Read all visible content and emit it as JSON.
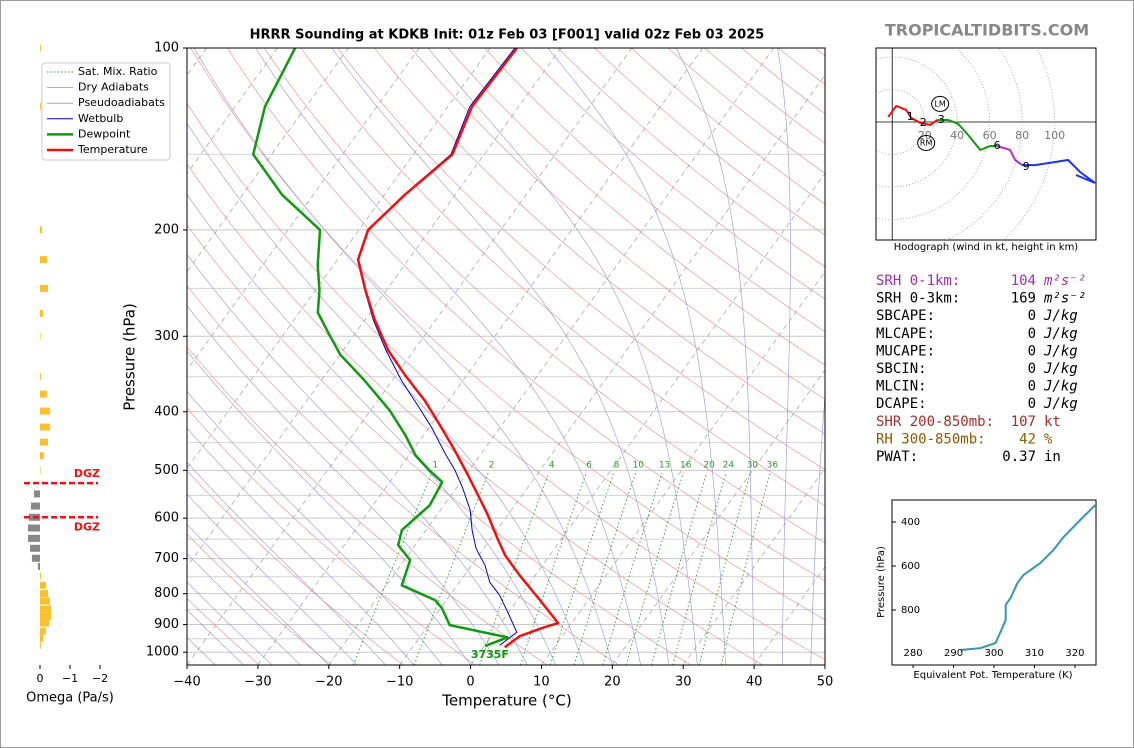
{
  "brand": "TROPICALTIDBITS.COM",
  "indices": [
    {
      "label": "SRH 0-1km:",
      "value": 104,
      "unit": "m²s⁻²",
      "color": "#9b30b0"
    },
    {
      "label": "SRH 0-3km:",
      "value": 169,
      "unit": "m²s⁻²",
      "color": "#000000"
    },
    {
      "label": "SBCAPE:",
      "value": 0,
      "unit": "J/kg",
      "color": "#000000"
    },
    {
      "label": "MLCAPE:",
      "value": 0,
      "unit": "J/kg",
      "color": "#000000"
    },
    {
      "label": "MUCAPE:",
      "value": 0,
      "unit": "J/kg",
      "color": "#000000"
    },
    {
      "label": "SBCIN:",
      "value": 0,
      "unit": "J/kg",
      "color": "#000000"
    },
    {
      "label": "MLCIN:",
      "value": 0,
      "unit": "J/kg",
      "color": "#000000"
    },
    {
      "label": "DCAPE:",
      "value": 0,
      "unit": "J/kg",
      "color": "#000000"
    },
    {
      "label": "SHR 200-850mb:",
      "value": 107,
      "unit": "kt",
      "color": "#a0302a"
    },
    {
      "label": "RH 300-850mb:",
      "value": 42,
      "unit": "%",
      "color": "#8b5a00"
    },
    {
      "label": "PWAT:",
      "value": 0.37,
      "unit": "in",
      "color": "#000000"
    }
  ],
  "chart_data": [
    {
      "type": "skewt",
      "title": "HRRR Sounding at KDKB Init: 01z Feb 03 [F001] valid 02z Feb 03 2025",
      "xlabel": "Temperature (°C)",
      "ylabel": "Pressure (hPa)",
      "xlim": [
        -40,
        50
      ],
      "xticks": [
        {
          "value": -40,
          "label": "−40"
        },
        {
          "value": -30,
          "label": "−30"
        },
        {
          "value": -20,
          "label": "−20"
        },
        {
          "value": -10,
          "label": "−10"
        },
        0,
        10,
        20,
        30,
        40,
        50
      ],
      "ylim": [
        1050,
        100
      ],
      "log_y": true,
      "yticks": [
        100,
        200,
        300,
        400,
        500,
        600,
        700,
        800,
        900,
        1000
      ],
      "minor_yticks": [
        150,
        250,
        350,
        450,
        550,
        650,
        750,
        850,
        950
      ],
      "reference_lines": [
        {
          "name": "Sat. Mix. Ratio",
          "color": "#2a9d2a",
          "style": "dotted"
        },
        {
          "name": "Dry Adiabats",
          "color": "#e58a8a",
          "style": "solid"
        },
        {
          "name": "Pseudoadiabats",
          "color": "#9595dd",
          "style": "solid"
        }
      ],
      "mixing_ratios": [
        1,
        2,
        4,
        6,
        8,
        10,
        13,
        16,
        20,
        24,
        30,
        36
      ],
      "series": [
        {
          "name": "Wetbulb",
          "color": "#0000cc",
          "line_width": 1,
          "pressure": [
            974,
            927,
            859,
            805,
            766,
            718,
            673,
            628,
            582,
            535,
            500,
            467,
            426,
            390,
            355,
            316,
            282,
            252,
            224,
            200,
            175,
            150,
            125,
            100
          ],
          "values": [
            2.1,
            3.2,
            -0.1,
            -3.0,
            -5.7,
            -8.1,
            -11.1,
            -13.5,
            -15.8,
            -19.1,
            -22.0,
            -25.3,
            -29.5,
            -33.9,
            -38.7,
            -44.0,
            -48.8,
            -53.0,
            -57.2,
            -58.8,
            -57.2,
            -54.7,
            -56.9,
            -56.5
          ]
        },
        {
          "name": "Dewpoint",
          "color": "#119911",
          "line_width": 2.5,
          "pressure": [
            977,
            945,
            902,
            846,
            820,
            775,
            704,
            665,
            628,
            571,
            523,
            500,
            472,
            437,
            398,
            355,
            322,
            299,
            274,
            252,
            229,
            200,
            175,
            150,
            125,
            100
          ],
          "values": [
            0.1,
            2.4,
            -7.0,
            -9.8,
            -11.6,
            -17.8,
            -19.2,
            -22.4,
            -23.4,
            -22.0,
            -22.6,
            -25.6,
            -29.1,
            -32.6,
            -37.3,
            -43.9,
            -49.9,
            -53.4,
            -57.4,
            -59.4,
            -62.2,
            -65.5,
            -74.4,
            -82.6,
            -85.8,
            -87.5
          ]
        },
        {
          "name": "Temperature",
          "color": "#ee1111",
          "line_width": 2.5,
          "pressure": [
            981,
            941,
            909,
            895,
            820,
            746,
            691,
            648,
            593,
            550,
            509,
            463,
            421,
            383,
            348,
            316,
            282,
            252,
            224,
            200,
            175,
            150,
            125,
            100
          ],
          "values": [
            3.0,
            4.0,
            6.6,
            8.1,
            3.2,
            -2.2,
            -6.3,
            -9.1,
            -12.8,
            -16.2,
            -19.7,
            -24.1,
            -28.7,
            -33.4,
            -38.7,
            -43.7,
            -48.6,
            -52.9,
            -57.1,
            -58.7,
            -57.1,
            -54.5,
            -56.6,
            -56.2
          ]
        }
      ],
      "annotation": {
        "text": "3735F",
        "color": "#119911"
      }
    },
    {
      "type": "barh",
      "xlabel": "Omega (Pa/s)",
      "xlim": [
        0.6,
        -2.1
      ],
      "xticks": [
        0,
        {
          "value": -1,
          "label": "−1"
        },
        {
          "value": -2,
          "label": "−2"
        }
      ],
      "color_negative": "#fbc02d",
      "color_positive": "#888888",
      "pressure": [
        100,
        125,
        200,
        224,
        250,
        275,
        300,
        350,
        374,
        399,
        424,
        449,
        473,
        500,
        547,
        573,
        598,
        623,
        648,
        673,
        699,
        721,
        748,
        775,
        800,
        823,
        849,
        872,
        895,
        923,
        948,
        974
      ],
      "values": [
        -0.03,
        -0.03,
        -0.07,
        -0.23,
        -0.27,
        -0.1,
        -0.02,
        -0.03,
        -0.23,
        -0.33,
        -0.33,
        -0.27,
        -0.13,
        -0.02,
        0.2,
        0.3,
        0.37,
        0.4,
        0.4,
        0.33,
        0.27,
        0.07,
        -0.03,
        -0.2,
        -0.27,
        -0.33,
        -0.37,
        -0.37,
        -0.3,
        -0.2,
        -0.1,
        -0.03
      ],
      "dgz": {
        "pressure": [
          525,
          598
        ],
        "labels": [
          "DGZ",
          "DGZ"
        ],
        "color": "#ee1111"
      }
    },
    {
      "type": "hodograph",
      "caption": "Hodograph (wind in kt, height in km)",
      "xlim": [
        -10,
        125.5
      ],
      "ylim": [
        -72.6,
        45.5
      ],
      "rings": [
        20,
        40,
        60,
        80,
        100
      ],
      "segments": [
        {
          "color": "#ee1111",
          "u": [
            -2.5,
            2.5,
            8.6,
            11.7,
            17.2,
            23.4,
            27.7
          ],
          "v": [
            3.1,
            9.8,
            7.4,
            2.5,
            -0.6,
            -1.8,
            1.2
          ]
        },
        {
          "color": "#119911",
          "u": [
            27.7,
            34.5,
            40.6,
            46.8,
            54.2,
            60.3,
            64.6
          ],
          "v": [
            1.2,
            1.2,
            -1.2,
            -8,
            -17.2,
            -14.8,
            -14.8
          ]
        },
        {
          "color": "#b030c0",
          "u": [
            64.6,
            72.6,
            75.7,
            80
          ],
          "v": [
            -14.8,
            -17.2,
            -23.4,
            -26.5
          ]
        },
        {
          "color": "#2233ee",
          "u": [
            80,
            88,
            108.3,
            115.7,
            124.9,
            113.2
          ],
          "v": [
            -26.5,
            -26.5,
            -23.4,
            -30.8,
            -37.5,
            -32.6
          ]
        }
      ],
      "heights": [
        {
          "value": 1,
          "u": 11.1,
          "v": 3.1
        },
        {
          "value": 2,
          "u": 19.1,
          "v": -0.6
        },
        {
          "value": 3,
          "u": 30.2,
          "v": 1.2
        },
        {
          "value": 6,
          "u": 64.6,
          "v": -14.8
        },
        {
          "value": 9,
          "u": 82.5,
          "v": -27.7
        }
      ],
      "storm_motion": [
        {
          "label": "LM",
          "u": 29.5,
          "v": 11.1
        },
        {
          "label": "RM",
          "u": 20.9,
          "v": -12.9
        }
      ]
    },
    {
      "type": "line",
      "xlabel": "Equivalent Pot. Temperature (K)",
      "ylabel": "Pressure (hPa)",
      "xlim": [
        274.8,
        325.2
      ],
      "xticks": [
        280,
        290,
        300,
        310,
        320
      ],
      "ylim": [
        1050,
        300
      ],
      "yticks": [
        400,
        600,
        800
      ],
      "color": "#3399aa",
      "theta_e": [
        291.8,
        296.7,
        300.4,
        301.6,
        302.9,
        302.9,
        304.1,
        305.8,
        307.3,
        311.5,
        314.7,
        317.2,
        321.3,
        326.3
      ],
      "pressure": [
        982,
        973,
        950,
        900,
        845,
        777,
        745,
        677,
        641,
        586,
        527,
        468,
        391,
        300
      ]
    }
  ]
}
